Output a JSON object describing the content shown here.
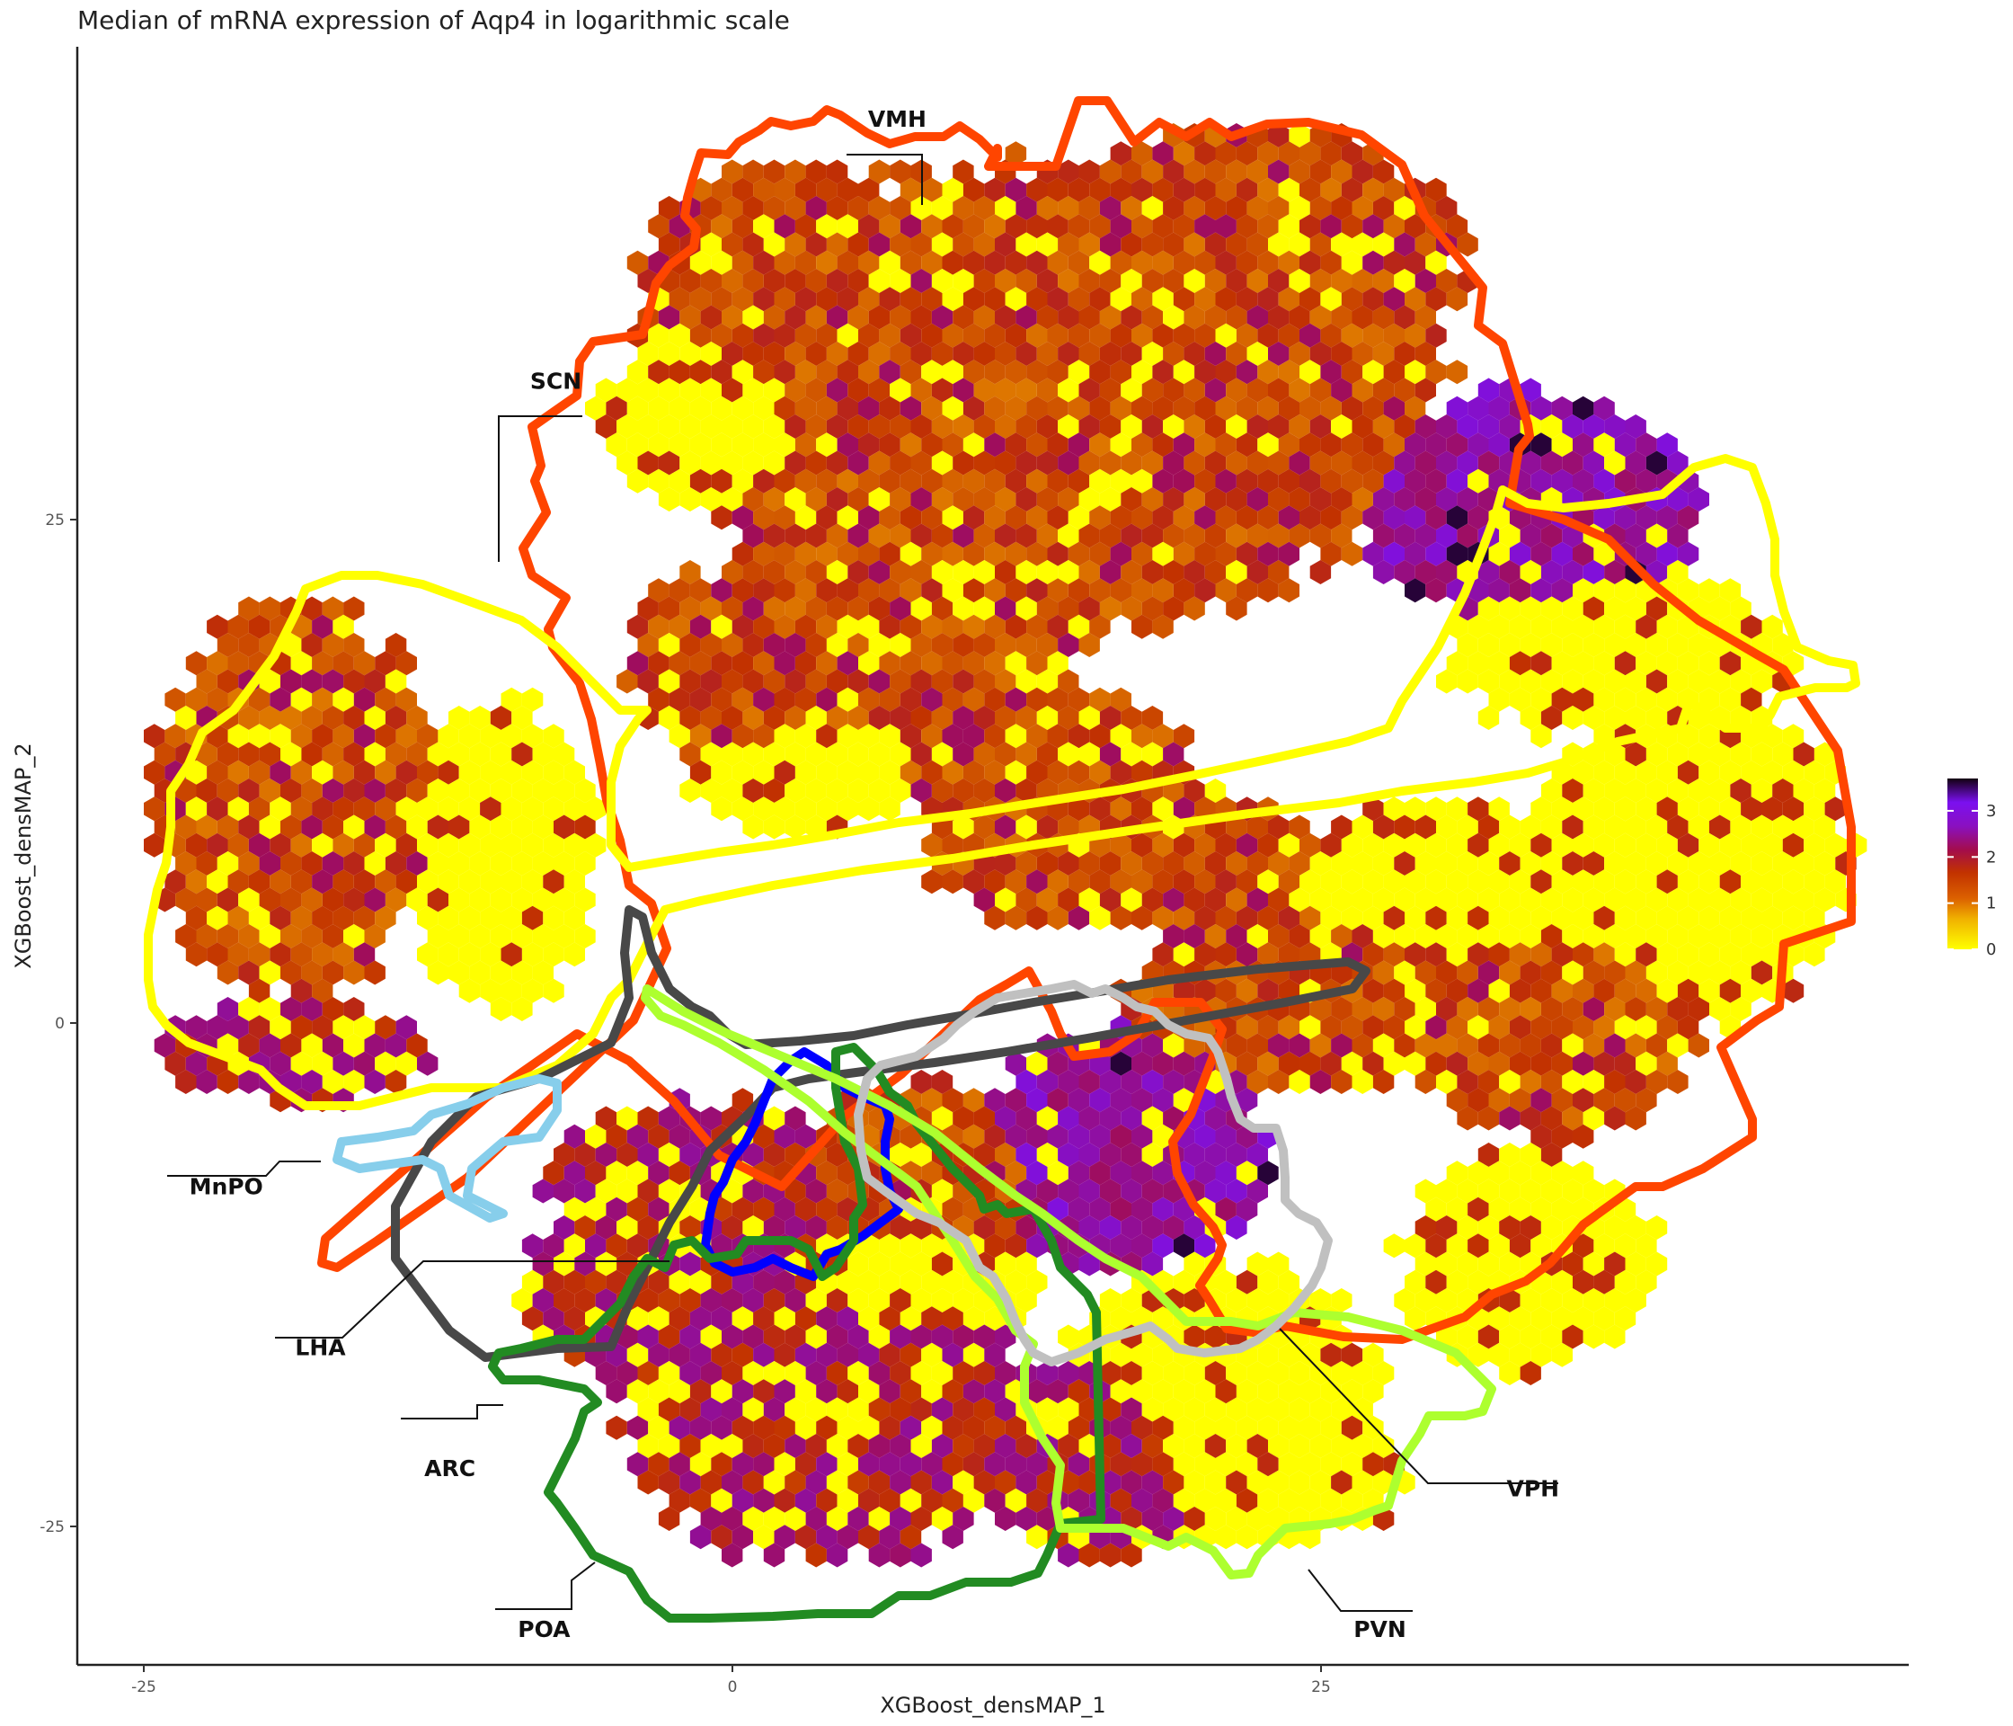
{
  "chart_data": {
    "type": "heatmap",
    "subtype": "hexbin",
    "title": "Median of mRNA expression of Aqp4 in logarithmic scale",
    "xlabel": "XGBoost_densMAP_1",
    "ylabel": "XGBoost_densMAP_2",
    "xlim": [
      -27,
      50.5
    ],
    "ylim": [
      -32,
      48
    ],
    "x_ticks": [
      -25,
      0,
      25
    ],
    "y_ticks": [
      -25,
      0,
      25
    ],
    "x_tick_labels": [
      "-25",
      "0",
      "25"
    ],
    "y_tick_labels": [
      "-25",
      "0",
      "25"
    ],
    "grid": false,
    "colorbar": {
      "ticks": [
        0,
        1,
        2,
        3
      ],
      "tick_labels": [
        "0",
        "1",
        "2",
        "3"
      ],
      "range": [
        0,
        3.7
      ],
      "colors": [
        "#ffff00",
        "#e07c00",
        "#c23200",
        "#a40d4a",
        "#8010e0",
        "#120010"
      ],
      "placement": "right"
    },
    "regions": [
      {
        "name": "VMH",
        "color": "#ff4500",
        "label_x": 7,
        "label_y": 44.5
      },
      {
        "name": "SCN",
        "color": "#ffff00",
        "label_x": -7.5,
        "label_y": 31.5
      },
      {
        "name": "MnPO",
        "color": "#87ceeb",
        "label_x": -21.5,
        "label_y": -8.5
      },
      {
        "name": "LHA",
        "color": "#484848",
        "label_x": -17.5,
        "label_y": -16.5
      },
      {
        "name": "ARC",
        "color": "#228b22",
        "label_x": -12,
        "label_y": -22.5
      },
      {
        "name": "POA",
        "color": "#228b22",
        "label_x": -8,
        "label_y": -30.5
      },
      {
        "name": "VPH",
        "color": "#adff2f",
        "label_x": 34,
        "label_y": -23.5
      },
      {
        "name": "PVN",
        "color": "#adff2f",
        "label_x": 27.5,
        "label_y": -30.5
      }
    ]
  }
}
